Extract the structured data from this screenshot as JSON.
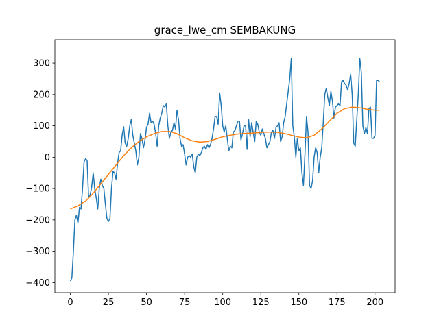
{
  "chart_data": {
    "type": "line",
    "title": "grace_lwe_cm SEMBAKUNG",
    "xlim": [
      -10.15,
      213.15
    ],
    "ylim": [
      -432,
      374.5
    ],
    "xticks": [
      0,
      25,
      50,
      75,
      100,
      125,
      150,
      175,
      200
    ],
    "yticks": [
      {
        "value": -400,
        "label": "−400"
      },
      {
        "value": -300,
        "label": "−300"
      },
      {
        "value": -200,
        "label": "−200"
      },
      {
        "value": -100,
        "label": "−100"
      },
      0,
      100,
      200,
      300
    ],
    "series": [
      {
        "color": "#1f77b4",
        "x": [
          0,
          1,
          2,
          3,
          4,
          5,
          6,
          7,
          8,
          9,
          10,
          11,
          12,
          13,
          14,
          15,
          16,
          17,
          18,
          19,
          20,
          21,
          22,
          23,
          24,
          25,
          26,
          27,
          28,
          29,
          30,
          31,
          32,
          33,
          34,
          35,
          36,
          37,
          38,
          39,
          40,
          41,
          42,
          43,
          44,
          45,
          46,
          47,
          48,
          49,
          50,
          51,
          52,
          53,
          54,
          55,
          56,
          57,
          58,
          59,
          60,
          61,
          62,
          63,
          64,
          65,
          66,
          67,
          68,
          69,
          70,
          71,
          72,
          73,
          74,
          75,
          76,
          77,
          78,
          79,
          80,
          81,
          82,
          83,
          84,
          85,
          86,
          87,
          88,
          89,
          90,
          91,
          92,
          93,
          94,
          95,
          96,
          97,
          98,
          99,
          100,
          101,
          102,
          103,
          104,
          105,
          106,
          107,
          108,
          109,
          110,
          111,
          112,
          113,
          114,
          115,
          116,
          117,
          118,
          119,
          120,
          121,
          122,
          123,
          124,
          125,
          126,
          127,
          128,
          129,
          130,
          131,
          132,
          133,
          134,
          135,
          136,
          137,
          138,
          139,
          140,
          141,
          142,
          143,
          144,
          145,
          146,
          147,
          148,
          149,
          150,
          151,
          152,
          153,
          154,
          155,
          156,
          157,
          158,
          159,
          160,
          161,
          162,
          163,
          164,
          165,
          166,
          167,
          168,
          169,
          170,
          171,
          172,
          173,
          174,
          175,
          176,
          177,
          178,
          179,
          180,
          181,
          182,
          183,
          184,
          185,
          186,
          187,
          188,
          189,
          190,
          191,
          192,
          193,
          194,
          195,
          196,
          197,
          198,
          199,
          200,
          201,
          202,
          203
        ],
        "values": [
          -395,
          -385,
          -300,
          -200,
          -185,
          -210,
          -160,
          -165,
          -100,
          -15,
          -5,
          -10,
          -130,
          -120,
          -95,
          -50,
          -100,
          -130,
          -165,
          -100,
          -70,
          -90,
          -100,
          -150,
          -195,
          -205,
          -195,
          -100,
          -45,
          -50,
          -70,
          -20,
          15,
          20,
          70,
          97,
          45,
          35,
          60,
          100,
          120,
          70,
          45,
          20,
          -25,
          0,
          75,
          60,
          30,
          55,
          95,
          105,
          140,
          110,
          115,
          105,
          75,
          35,
          100,
          125,
          140,
          165,
          160,
          170,
          100,
          60,
          80,
          85,
          110,
          90,
          150,
          120,
          60,
          35,
          40,
          10,
          -25,
          0,
          5,
          0,
          10,
          -30,
          -50,
          0,
          10,
          5,
          15,
          30,
          35,
          25,
          40,
          30,
          40,
          60,
          90,
          130,
          130,
          105,
          205,
          165,
          100,
          80,
          100,
          60,
          20,
          35,
          30,
          80,
          85,
          100,
          115,
          115,
          55,
          75,
          100,
          100,
          25,
          120,
          65,
          110,
          80,
          50,
          115,
          105,
          80,
          70,
          90,
          75,
          60,
          30,
          40,
          50,
          80,
          85,
          60,
          95,
          100,
          110,
          50,
          65,
          110,
          130,
          170,
          210,
          250,
          315,
          100,
          65,
          0,
          60,
          20,
          30,
          -50,
          -90,
          10,
          130,
          80,
          -90,
          -100,
          -75,
          0,
          30,
          15,
          -50,
          0,
          30,
          110,
          200,
          220,
          190,
          165,
          210,
          180,
          125,
          160,
          165,
          170,
          165,
          240,
          245,
          235,
          230,
          215,
          235,
          265,
          200,
          45,
          35,
          120,
          200,
          315,
          270,
          100,
          75,
          95,
          75,
          155,
          160,
          60,
          60,
          70,
          245,
          245,
          240
        ]
      },
      {
        "color": "#ff7f0e",
        "x": [
          0,
          5,
          10,
          15,
          20,
          25,
          30,
          35,
          40,
          45,
          50,
          55,
          60,
          65,
          70,
          75,
          80,
          85,
          90,
          95,
          100,
          105,
          110,
          115,
          120,
          125,
          130,
          135,
          140,
          145,
          150,
          155,
          160,
          165,
          170,
          175,
          180,
          185,
          190,
          195,
          200,
          203
        ],
        "values": [
          -165,
          -155,
          -140,
          -115,
          -85,
          -55,
          -25,
          5,
          30,
          50,
          65,
          75,
          82,
          82,
          75,
          62,
          52,
          48,
          50,
          57,
          65,
          70,
          74,
          76,
          77,
          79,
          80,
          80,
          76,
          70,
          64,
          62,
          70,
          90,
          115,
          140,
          155,
          160,
          158,
          153,
          150,
          150
        ]
      }
    ]
  }
}
